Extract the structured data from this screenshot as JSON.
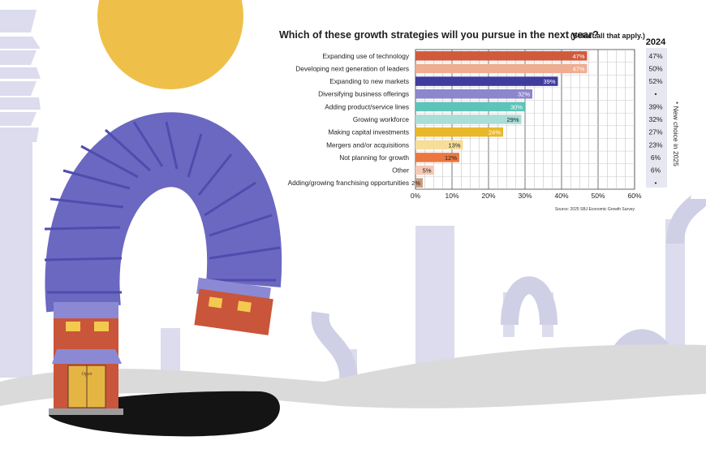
{
  "chart_data": {
    "type": "bar",
    "orientation": "horizontal",
    "title": "Which of these growth strategies will you pursue in the next year?",
    "subtitle": "(Select all that apply.)",
    "categories": [
      "Expanding use of technology",
      "Developing next generation of leaders",
      "Expanding to new markets",
      "Diversifying business offerings",
      "Adding product/service lines",
      "Growing workforce",
      "Making capital investments",
      "Mergers and/or acquisitions",
      "Not planning for growth",
      "Other",
      "Adding/growing franchising opportunities"
    ],
    "values": [
      47,
      47,
      39,
      32,
      30,
      29,
      24,
      13,
      12,
      5,
      2
    ],
    "data_labels": [
      "47%",
      "47%",
      "39%",
      "32%",
      "30%",
      "29%",
      "24%",
      "13%",
      "12%",
      "5%",
      "2%"
    ],
    "colors": [
      "#d25a3c",
      "#efad91",
      "#403c9e",
      "#8c86cc",
      "#5ec4b9",
      "#a9ddd6",
      "#e9b82a",
      "#f7dd9a",
      "#ea7840",
      "#f6c9b6",
      "#c89c7d"
    ],
    "label_colors": [
      "#ffffff",
      "#ffffff",
      "#ffffff",
      "#ffffff",
      "#ffffff",
      "#222222",
      "#ffffff",
      "#222222",
      "#222222",
      "#222222",
      "#222222"
    ],
    "x_ticks": [
      "0%",
      "10%",
      "20%",
      "30%",
      "40%",
      "50%",
      "60%"
    ],
    "xlim": [
      0,
      60
    ],
    "grid": true,
    "comparison_header": "2024",
    "comparison_values": [
      "47%",
      "50%",
      "52%",
      "•",
      "39%",
      "32%",
      "27%",
      "23%",
      "6%",
      "6%",
      "•"
    ],
    "comparison_note": "* New choice in 2025",
    "source": "Source: 2025 SBJ Economic Growth Survey"
  },
  "illustration": {
    "sign_text": "Open",
    "colors": {
      "sun": "#eec04a",
      "duct": "#6b68c2",
      "brick": "#c9553a",
      "ghost": "#d8d8ec",
      "ground": "#d6d6d6"
    }
  }
}
